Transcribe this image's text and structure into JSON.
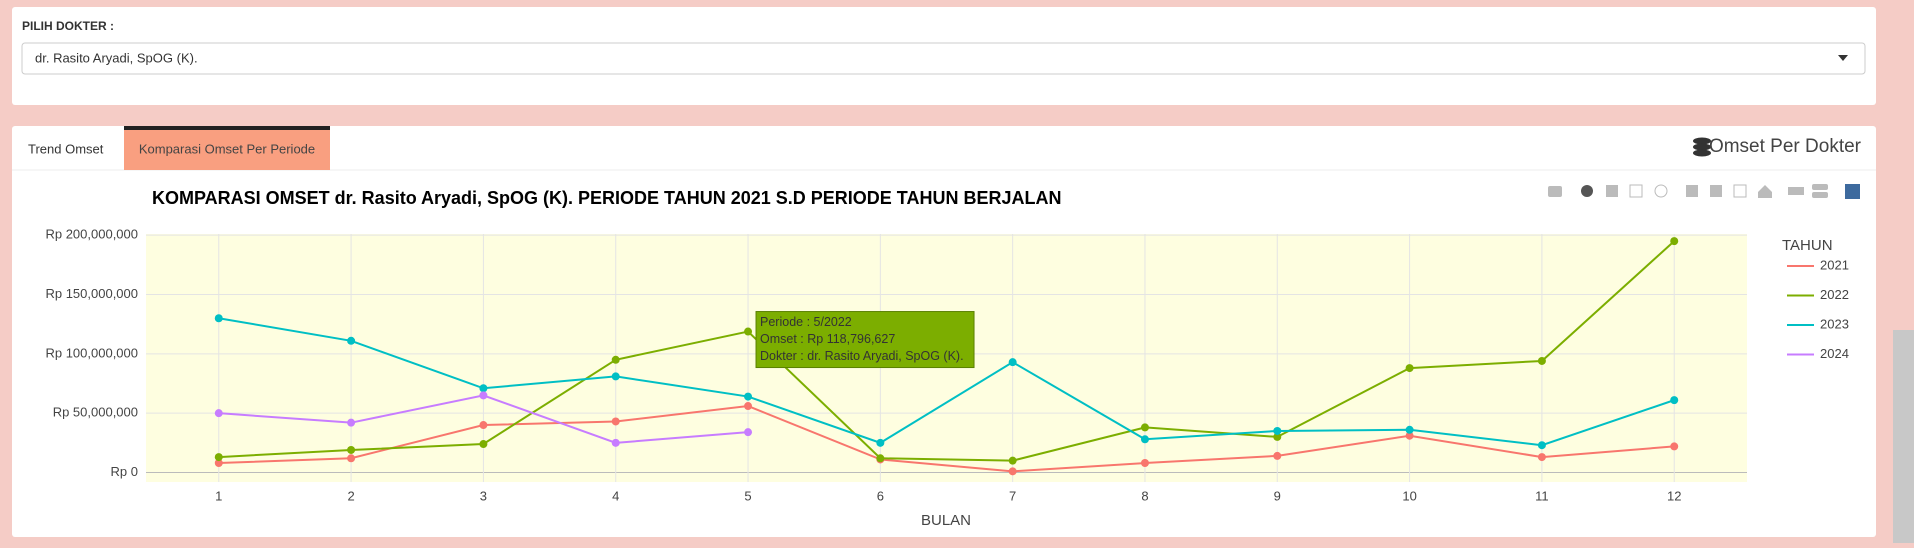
{
  "form": {
    "label": "PILIH DOKTER :",
    "selected": "dr. Rasito Aryadi, SpOG (K)."
  },
  "tabs": [
    "Trend Omset",
    "Komparasi Omset Per Periode"
  ],
  "panel_title": "Omset Per Dokter",
  "chart_data": {
    "type": "line",
    "title": "KOMPARASI OMSET dr. Rasito Aryadi, SpOG (K). PERIODE TAHUN 2021 S.D PERIODE TAHUN BERJALAN",
    "x_label": "BULAN",
    "legend_title": "TAHUN",
    "x": [
      1,
      2,
      3,
      4,
      5,
      6,
      7,
      8,
      9,
      10,
      11,
      12
    ],
    "xlim": [
      0.45,
      12.55
    ],
    "xticks": [
      1,
      2,
      3,
      4,
      5,
      6,
      7,
      8,
      9,
      10,
      11,
      12
    ],
    "ylim": [
      -8000000,
      201000000
    ],
    "yticks": [
      {
        "value": 0,
        "label": "Rp 0"
      },
      {
        "value": 50000000,
        "label": "Rp 50,000,000"
      },
      {
        "value": 100000000,
        "label": "Rp 100,000,000"
      },
      {
        "value": 150000000,
        "label": "Rp 150,000,000"
      },
      {
        "value": 200000000,
        "label": "Rp 200,000,000"
      }
    ],
    "grid": true,
    "series": [
      {
        "name": "2021",
        "color": "#f8766d",
        "values": [
          8000000,
          12000000,
          40000000,
          43000000,
          56000000,
          11000000,
          1000000,
          8000000,
          14000000,
          31000000,
          13000000,
          22000000
        ]
      },
      {
        "name": "2022",
        "color": "#7cae00",
        "values": [
          13000000,
          19000000,
          24000000,
          95000000,
          118796627,
          12000000,
          10000000,
          38000000,
          30000000,
          88000000,
          94000000,
          195000000
        ]
      },
      {
        "name": "2023",
        "color": "#00bfc4",
        "values": [
          130000000,
          111000000,
          71000000,
          81000000,
          64000000,
          25000000,
          93000000,
          28000000,
          35000000,
          36000000,
          23000000,
          61000000
        ]
      },
      {
        "name": "2024",
        "color": "#c77cff",
        "values": [
          50000000,
          42000000,
          65000000,
          25000000,
          34000000,
          null,
          null,
          null,
          null,
          null,
          null,
          null
        ]
      }
    ],
    "tooltip": [
      "Periode : 5/2022",
      "Omset : Rp 118,796,627",
      "Dokter : dr. Rasito Aryadi, SpOG (K)."
    ]
  }
}
